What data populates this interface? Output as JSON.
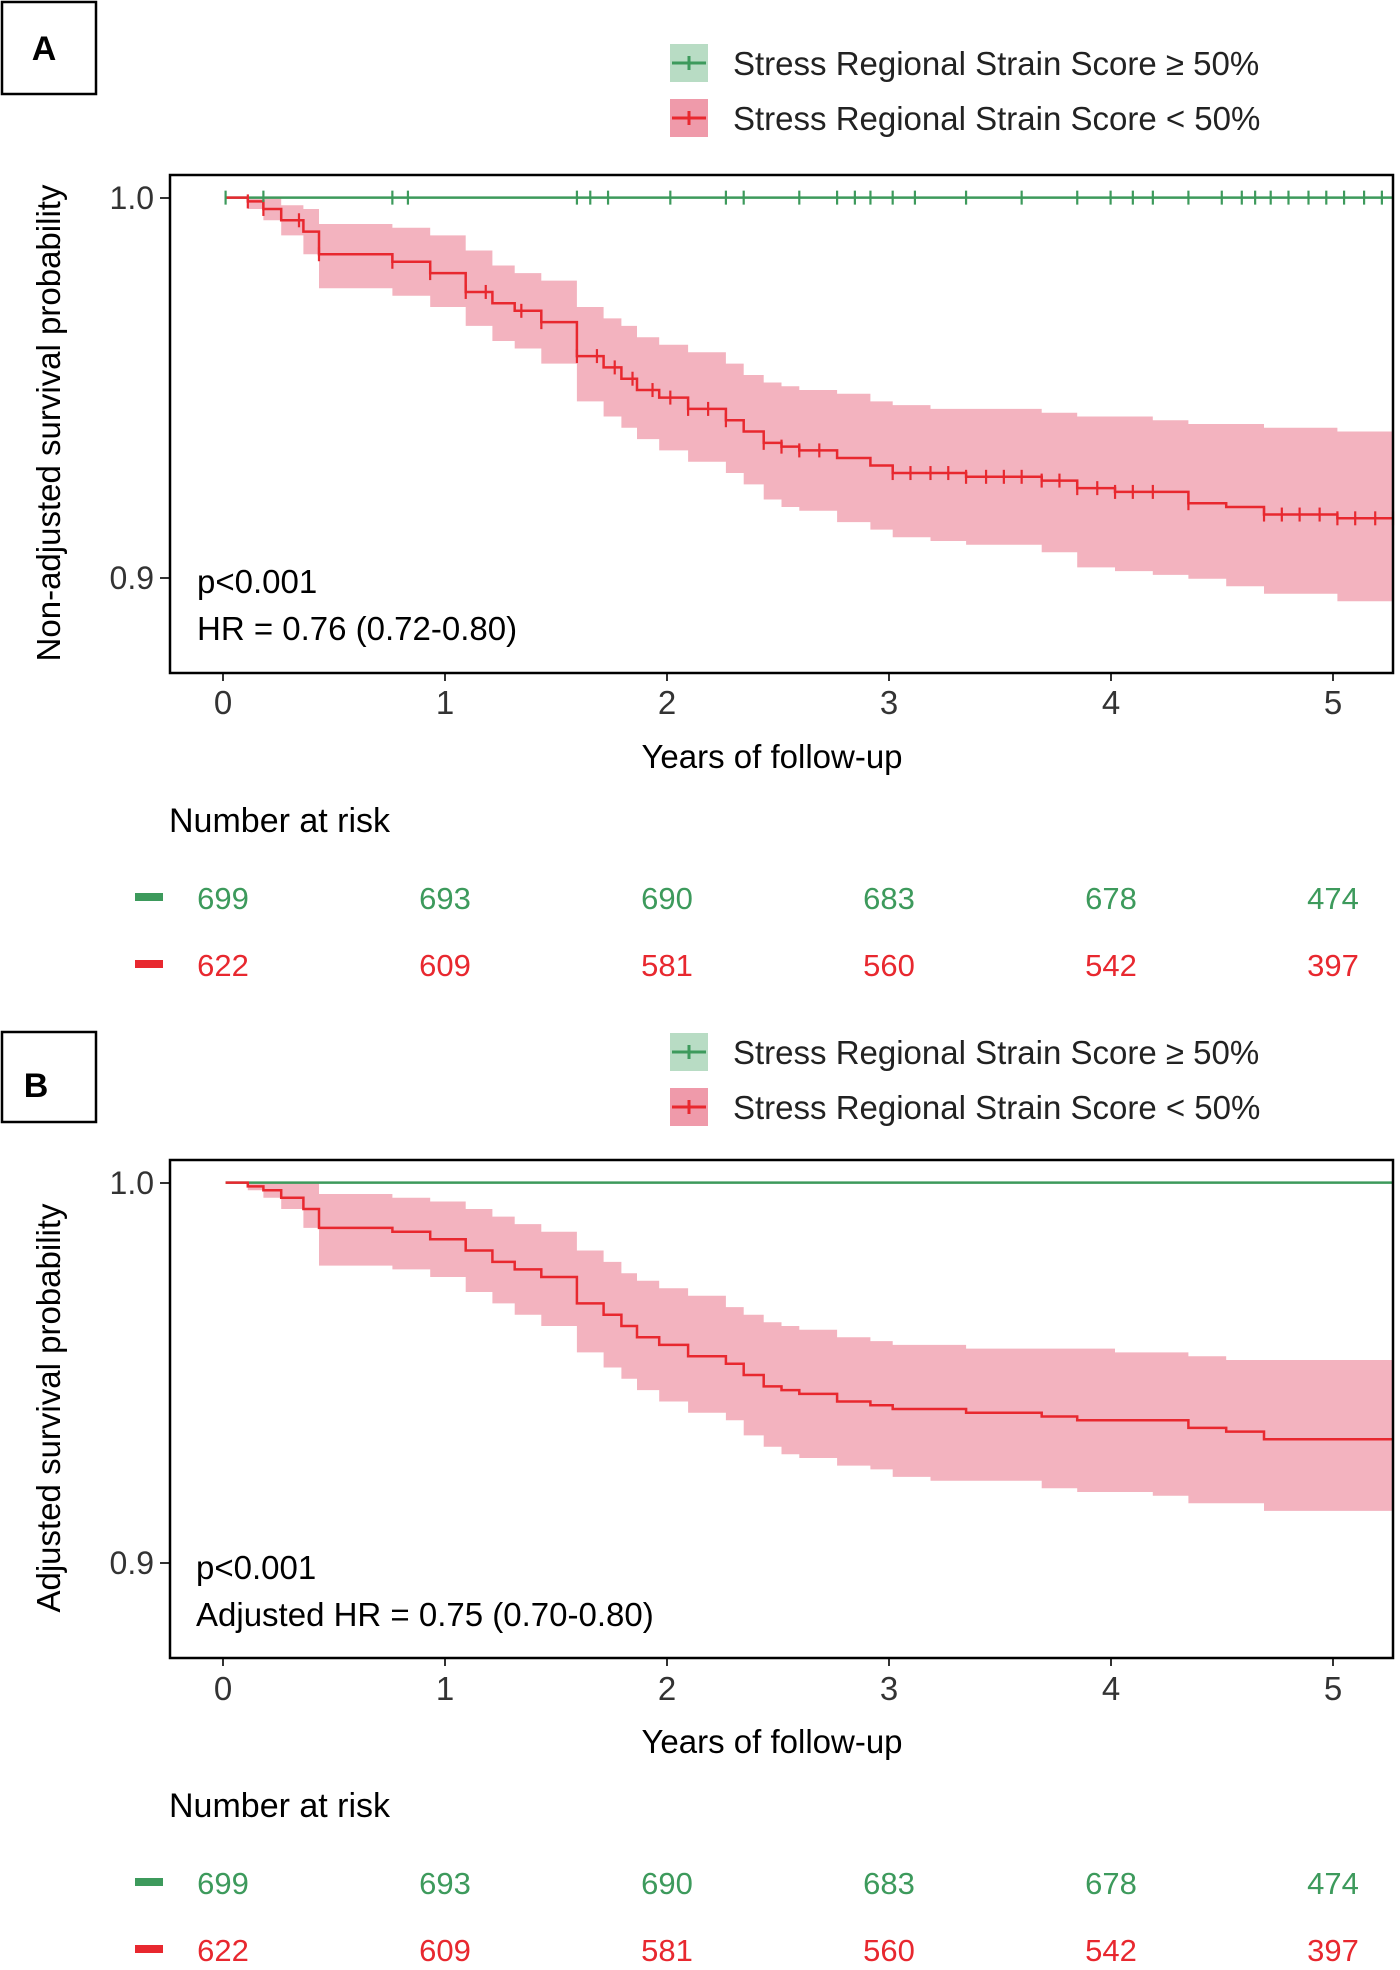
{
  "colors": {
    "green": "#3d9a5c",
    "red": "#e8282f",
    "red_band": "#ef9aaa",
    "green_band": "#b8dcc4",
    "frame": "#000000",
    "axis_text": "#333333"
  },
  "chart_data": [
    {
      "type": "line",
      "panel_label": "A",
      "ylabel": "Non-adjusted survival probability",
      "xlabel": "Years of follow-up",
      "xlim": [
        -0.25,
        5.25
      ],
      "ylim": [
        0.874,
        1.006
      ],
      "x_ticks": [
        0,
        1,
        2,
        3,
        4,
        5
      ],
      "x_tick_labels": [
        "0",
        "1",
        "2",
        "3",
        "4",
        "5"
      ],
      "y_ticks": [
        0.9,
        1.0
      ],
      "y_tick_labels": [
        "0.9",
        "1.0"
      ],
      "legend": [
        "Stress Regional Strain Score ≥ 50%",
        "Stress Regional Strain Score < 50%"
      ],
      "annotation": [
        "p<0.001",
        "HR = 0.76 (0.72-0.80)"
      ],
      "show_censor_marks": true,
      "series": [
        {
          "name": "Stress Regional Strain Score ≥ 50%",
          "color_key": "green",
          "x": [
            0,
            5.25
          ],
          "y": [
            1.0,
            1.0
          ],
          "censor_x": [
            0.0,
            0.17,
            0.75,
            0.82,
            1.58,
            1.64,
            1.72,
            2.0,
            2.25,
            2.33,
            2.58,
            2.75,
            2.83,
            2.9,
            3.0,
            3.1,
            3.33,
            3.58,
            3.83,
            3.98,
            4.08,
            4.17,
            4.33,
            4.48,
            4.57,
            4.63,
            4.7,
            4.78,
            4.87,
            4.95,
            5.03,
            5.12,
            5.2
          ]
        },
        {
          "name": "Stress Regional Strain Score < 50%",
          "color_key": "red",
          "x": [
            0,
            0.1,
            0.17,
            0.25,
            0.35,
            0.42,
            0.75,
            0.92,
            1.08,
            1.2,
            1.3,
            1.42,
            1.58,
            1.7,
            1.78,
            1.85,
            1.95,
            2.08,
            2.25,
            2.33,
            2.42,
            2.5,
            2.58,
            2.75,
            2.9,
            3.0,
            3.17,
            3.33,
            3.67,
            3.83,
            4.0,
            4.17,
            4.33,
            4.5,
            4.67,
            5.0,
            5.25
          ],
          "y": [
            1.0,
            0.999,
            0.997,
            0.994,
            0.991,
            0.985,
            0.983,
            0.98,
            0.975,
            0.972,
            0.97,
            0.967,
            0.958,
            0.955,
            0.952,
            0.949,
            0.947,
            0.944,
            0.941,
            0.938,
            0.935,
            0.934,
            0.933,
            0.931,
            0.929,
            0.927,
            0.927,
            0.926,
            0.925,
            0.923,
            0.922,
            0.922,
            0.919,
            0.918,
            0.916,
            0.915,
            0.915
          ],
          "ci_lower": [
            1.0,
            0.997,
            0.994,
            0.99,
            0.985,
            0.976,
            0.974,
            0.971,
            0.966,
            0.962,
            0.96,
            0.956,
            0.946,
            0.942,
            0.939,
            0.936,
            0.933,
            0.93,
            0.927,
            0.924,
            0.92,
            0.918,
            0.917,
            0.914,
            0.912,
            0.91,
            0.909,
            0.908,
            0.906,
            0.902,
            0.901,
            0.9,
            0.899,
            0.897,
            0.895,
            0.893,
            0.893
          ],
          "ci_upper": [
            1.0,
            1.0,
            1.0,
            0.998,
            0.997,
            0.993,
            0.992,
            0.99,
            0.986,
            0.982,
            0.98,
            0.978,
            0.971,
            0.968,
            0.966,
            0.963,
            0.961,
            0.959,
            0.956,
            0.953,
            0.951,
            0.95,
            0.949,
            0.948,
            0.946,
            0.945,
            0.944,
            0.944,
            0.943,
            0.942,
            0.942,
            0.941,
            0.94,
            0.94,
            0.939,
            0.938,
            0.938
          ],
          "censor_x": [
            0.1,
            0.17,
            0.33,
            0.42,
            0.75,
            0.92,
            1.08,
            1.17,
            1.33,
            1.42,
            1.58,
            1.67,
            1.75,
            1.83,
            1.92,
            2.0,
            2.08,
            2.17,
            2.25,
            2.42,
            2.5,
            2.58,
            2.67,
            3.0,
            3.08,
            3.17,
            3.25,
            3.33,
            3.42,
            3.5,
            3.58,
            3.67,
            3.75,
            3.83,
            3.92,
            4.0,
            4.08,
            4.17,
            4.33,
            4.67,
            4.75,
            4.83,
            4.92,
            5.0,
            5.08,
            5.17,
            5.25
          ]
        }
      ],
      "risk_table": {
        "title": "Number at risk",
        "times": [
          0,
          1,
          2,
          3,
          4,
          5
        ],
        "rows": [
          {
            "color_key": "green",
            "values": [
              "699",
              "693",
              "690",
              "683",
              "678",
              "474"
            ]
          },
          {
            "color_key": "red",
            "values": [
              "622",
              "609",
              "581",
              "560",
              "542",
              "397"
            ]
          }
        ]
      }
    },
    {
      "type": "line",
      "panel_label": "B",
      "ylabel": "Adjusted survival probability",
      "xlabel": "Years of follow-up",
      "xlim": [
        -0.25,
        5.25
      ],
      "ylim": [
        0.874,
        1.006
      ],
      "x_ticks": [
        0,
        1,
        2,
        3,
        4,
        5
      ],
      "x_tick_labels": [
        "0",
        "1",
        "2",
        "3",
        "4",
        "5"
      ],
      "y_ticks": [
        0.9,
        1.0
      ],
      "y_tick_labels": [
        "0.9",
        "1.0"
      ],
      "legend": [
        "Stress Regional Strain Score ≥ 50%",
        "Stress Regional Strain Score < 50%"
      ],
      "annotation": [
        "p<0.001",
        "Adjusted HR = 0.75 (0.70-0.80)"
      ],
      "show_censor_marks": false,
      "series": [
        {
          "name": "Stress Regional Strain Score ≥ 50%",
          "color_key": "green",
          "x": [
            0,
            5.25
          ],
          "y": [
            1.0,
            1.0
          ],
          "censor_x": []
        },
        {
          "name": "Stress Regional Strain Score < 50%",
          "color_key": "red",
          "x": [
            0,
            0.1,
            0.17,
            0.25,
            0.35,
            0.42,
            0.75,
            0.92,
            1.08,
            1.2,
            1.3,
            1.42,
            1.58,
            1.7,
            1.78,
            1.85,
            1.95,
            2.08,
            2.25,
            2.33,
            2.42,
            2.5,
            2.58,
            2.75,
            2.9,
            3.0,
            3.17,
            3.33,
            3.67,
            3.83,
            4.0,
            4.17,
            4.33,
            4.5,
            4.67,
            5.0,
            5.25
          ],
          "y": [
            1.0,
            0.999,
            0.998,
            0.996,
            0.993,
            0.988,
            0.987,
            0.985,
            0.982,
            0.979,
            0.977,
            0.975,
            0.968,
            0.965,
            0.962,
            0.959,
            0.957,
            0.954,
            0.952,
            0.949,
            0.946,
            0.945,
            0.944,
            0.942,
            0.941,
            0.94,
            0.94,
            0.939,
            0.938,
            0.937,
            0.937,
            0.937,
            0.935,
            0.934,
            0.932,
            0.932,
            0.932
          ],
          "ci_lower": [
            1.0,
            0.998,
            0.996,
            0.993,
            0.988,
            0.978,
            0.977,
            0.975,
            0.971,
            0.968,
            0.965,
            0.962,
            0.955,
            0.951,
            0.948,
            0.945,
            0.942,
            0.939,
            0.937,
            0.933,
            0.93,
            0.928,
            0.927,
            0.925,
            0.924,
            0.922,
            0.921,
            0.921,
            0.919,
            0.918,
            0.918,
            0.917,
            0.915,
            0.915,
            0.913,
            0.913,
            0.913
          ],
          "ci_upper": [
            1.0,
            1.0,
            1.0,
            1.0,
            1.0,
            0.997,
            0.996,
            0.995,
            0.993,
            0.991,
            0.989,
            0.987,
            0.982,
            0.979,
            0.976,
            0.974,
            0.972,
            0.97,
            0.967,
            0.965,
            0.963,
            0.962,
            0.961,
            0.959,
            0.958,
            0.957,
            0.957,
            0.956,
            0.956,
            0.956,
            0.955,
            0.955,
            0.954,
            0.953,
            0.953,
            0.953,
            0.953
          ],
          "censor_x": []
        }
      ],
      "risk_table": {
        "title": "Number at risk",
        "times": [
          0,
          1,
          2,
          3,
          4,
          5
        ],
        "rows": [
          {
            "color_key": "green",
            "values": [
              "699",
              "693",
              "690",
              "683",
              "678",
              "474"
            ]
          },
          {
            "color_key": "red",
            "values": [
              "622",
              "609",
              "581",
              "560",
              "542",
              "397"
            ]
          }
        ]
      }
    }
  ]
}
